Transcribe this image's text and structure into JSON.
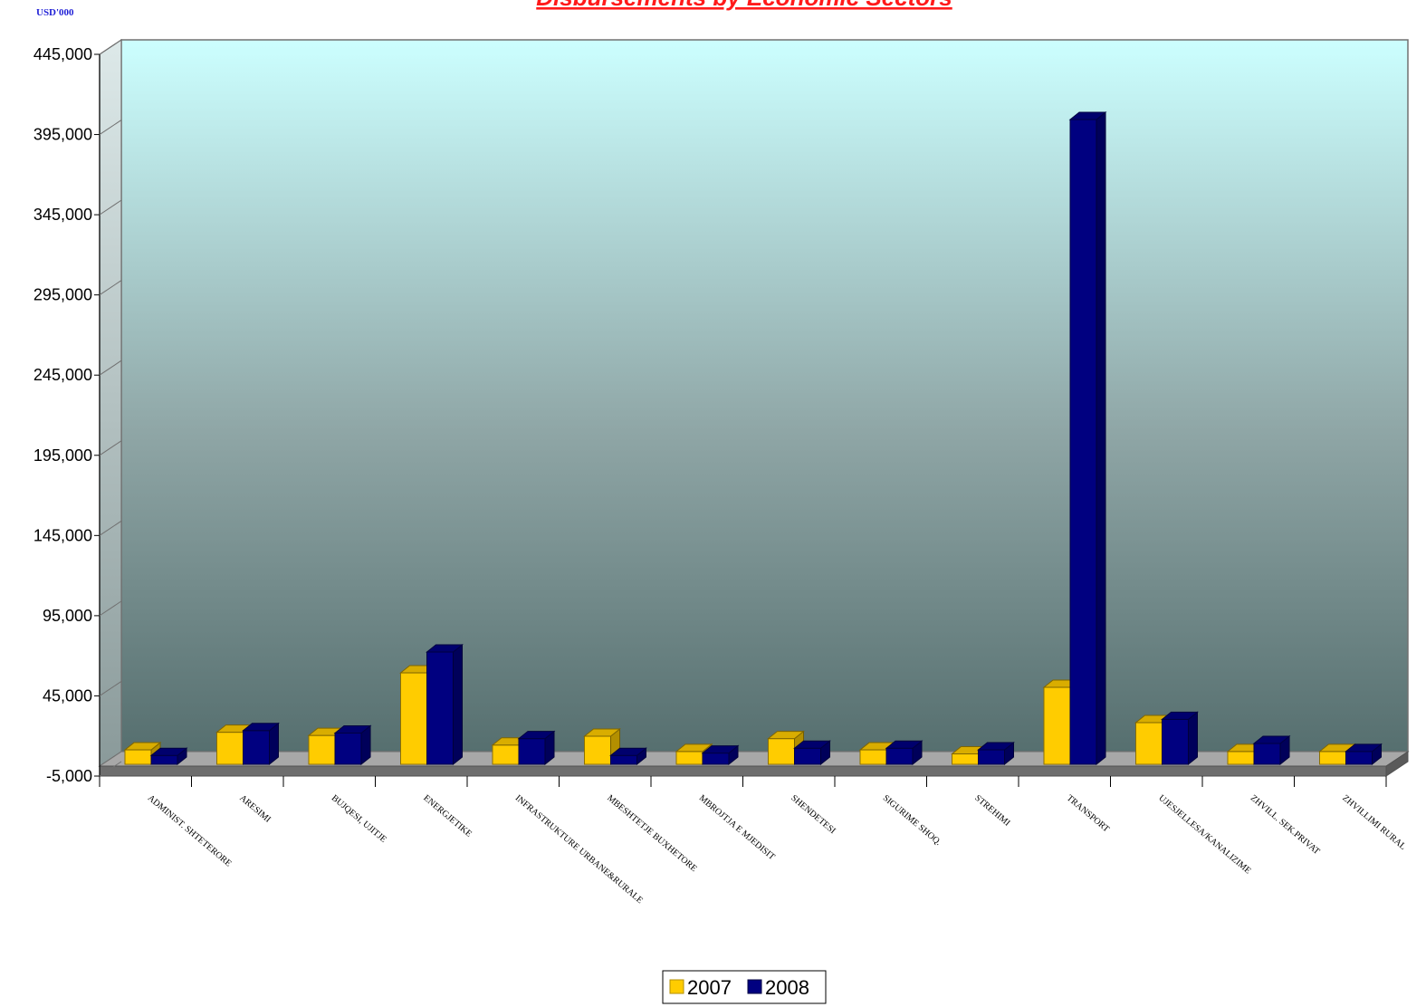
{
  "unit_label": "USD'000",
  "chart_data": {
    "type": "bar",
    "title": "Disbursements by Economic Sectors",
    "ylim": [
      -5000,
      445000
    ],
    "yticks": [
      -5000,
      45000,
      95000,
      145000,
      195000,
      245000,
      295000,
      345000,
      395000,
      445000
    ],
    "ytick_labels": [
      "-5,000",
      "45,000",
      "95,000",
      "145,000",
      "195,000",
      "245,000",
      "295,000",
      "345,000",
      "395,000",
      "445,000"
    ],
    "categories": [
      "ADMINIST. SHTETERORE",
      "ARESIMI",
      "BUJQESI, UJITJE",
      "ENERGJETIKE",
      "INFRASTRUKTURE URBANE&RURALE",
      "MBESHTETJE BUXHETORE",
      "MBROJTJA E MJEDISIT",
      "SHENDETESI",
      "SIGURIME SHOQ.",
      "STREHIMI",
      "TRANSPORT",
      "UJESJELLESA/KANALIZIME",
      "ZHVILL. SEK.PRIVAT",
      "ZHVILLIMI RURAL"
    ],
    "series": [
      {
        "name": "2007",
        "color": "#ffcc00",
        "values": [
          4000,
          15000,
          13000,
          52000,
          7000,
          12500,
          3000,
          11000,
          4000,
          1500,
          43000,
          21000,
          3000,
          3000
        ]
      },
      {
        "name": "2008",
        "color": "#000080",
        "values": [
          500,
          16000,
          14500,
          65000,
          11000,
          500,
          2000,
          5000,
          5000,
          4000,
          397000,
          23000,
          8000,
          3000
        ]
      }
    ],
    "legend": "bottom-center",
    "grid": false
  }
}
